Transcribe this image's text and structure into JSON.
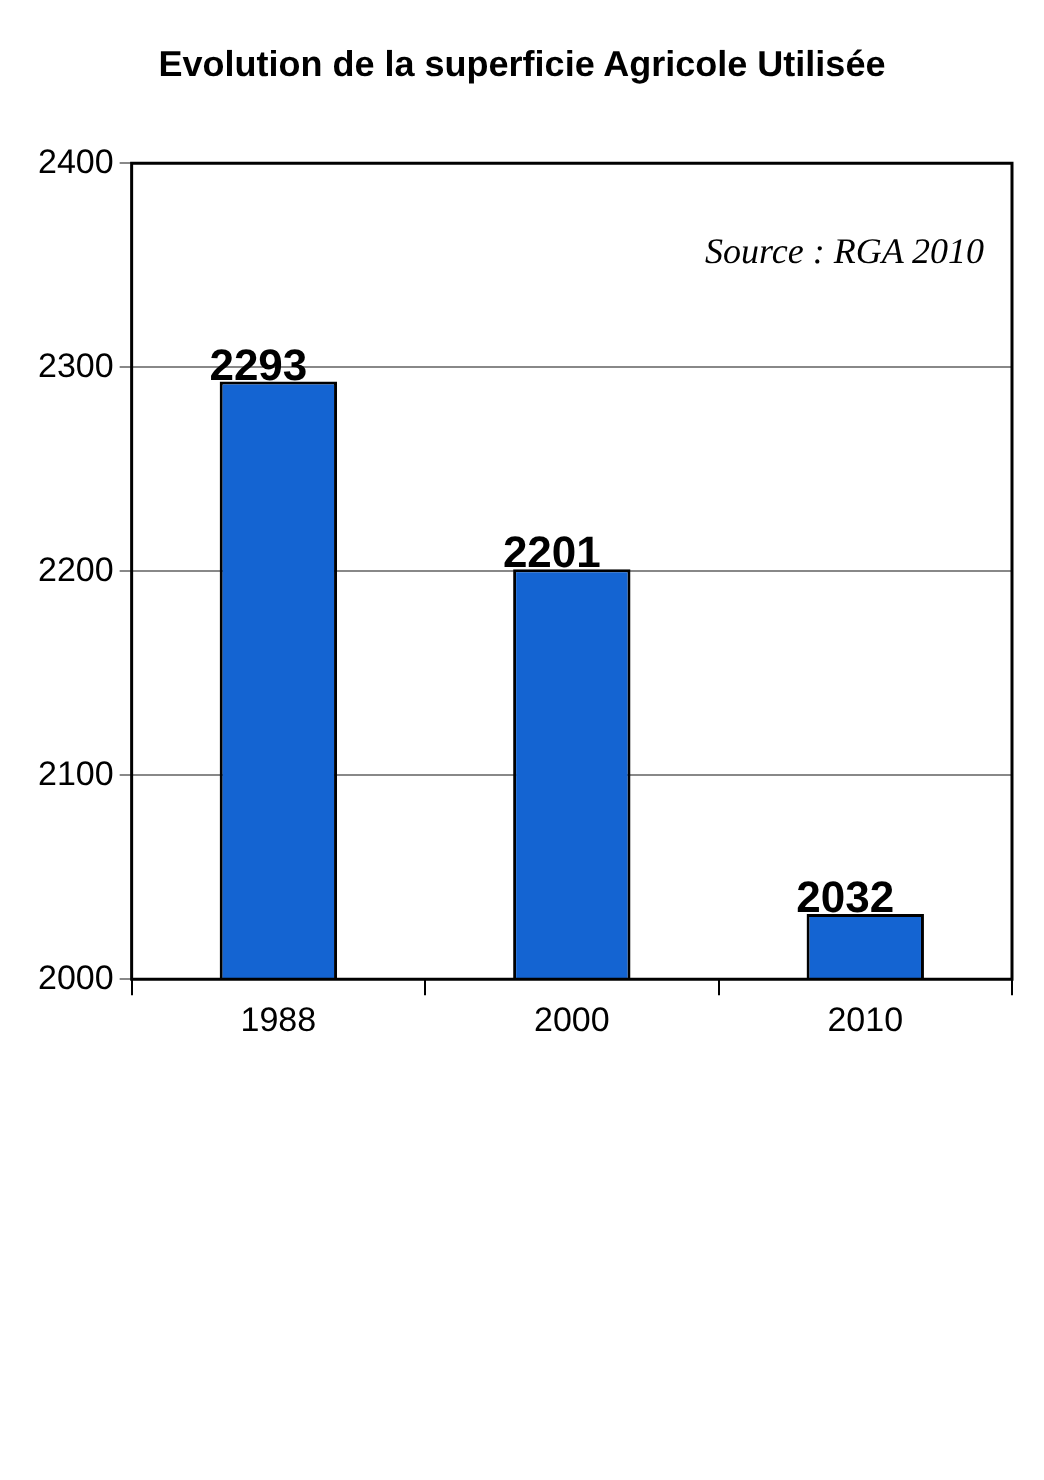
{
  "chart_data": {
    "type": "bar",
    "title": "Evolution de la superficie Agricole Utilisée",
    "categories": [
      "1988",
      "2000",
      "2010"
    ],
    "values": [
      2293,
      2201,
      2032
    ],
    "color": "#1464d2",
    "ylim": [
      2000,
      2400
    ],
    "yticks": [
      2000,
      2100,
      2200,
      2300,
      2400
    ],
    "grid": "y",
    "data_labels": true,
    "annotations": [
      "Source : RGA 2010"
    ]
  }
}
